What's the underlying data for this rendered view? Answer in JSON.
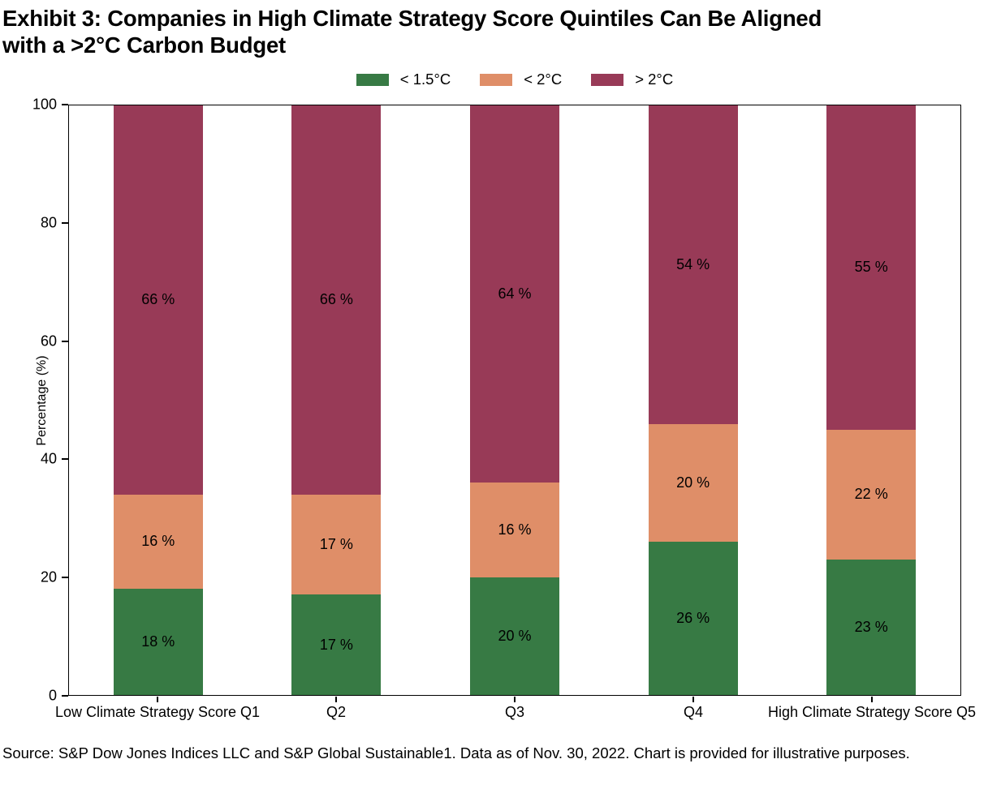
{
  "title_lines": [
    "Exhibit 3: Companies in High Climate Strategy Score Quintiles Can Be Aligned",
    "with a >2°C Carbon Budget"
  ],
  "title_full": "Exhibit 3: Companies in High Climate Strategy Score Quintiles Can Be Aligned with a >2°C Carbon Budget",
  "source_note": "Source: S&P Dow Jones Indices LLC and S&P Global Sustainable1. Data as of Nov. 30, 2022. Chart is provided for illustrative purposes.",
  "chart_data": {
    "type": "bar",
    "stacked": true,
    "categories": [
      "Low Climate Strategy Score Q1",
      "Q2",
      "Q3",
      "Q4",
      "High Climate Strategy Score Q5"
    ],
    "series": [
      {
        "name": "< 1.5°C",
        "color": "#377a44",
        "values": [
          18,
          17,
          20,
          26,
          23
        ]
      },
      {
        "name": "< 2°C",
        "color": "#df8e68",
        "values": [
          16,
          17,
          16,
          20,
          22
        ]
      },
      {
        "name": "> 2°C",
        "color": "#983a57",
        "values": [
          66,
          66,
          64,
          54,
          55
        ]
      }
    ],
    "label_format": "{v} %",
    "ylabel": "Percentage (%)",
    "ylim": [
      0,
      100
    ],
    "yticks": [
      0,
      20,
      40,
      60,
      80,
      100
    ],
    "legend_position": "top center",
    "grid": false,
    "bar_text_color": "#000000",
    "axis_color": "#000000"
  }
}
